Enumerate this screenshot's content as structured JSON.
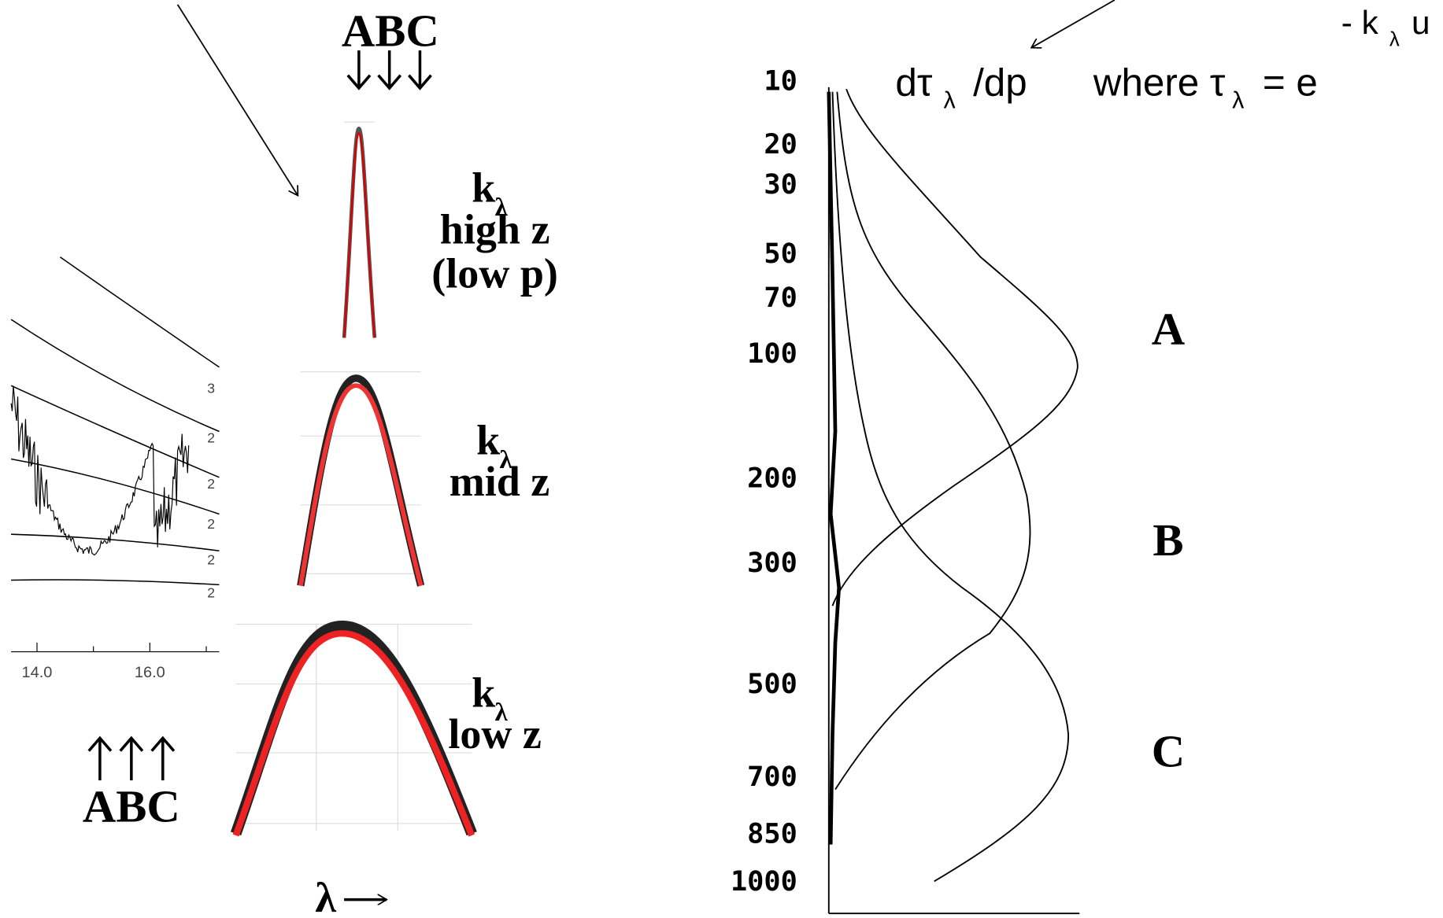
{
  "top_letters": "ABC",
  "bottom_letters": "ABC",
  "profiles": [
    {
      "k": "k",
      "sub": "λ",
      "lines": [
        "high z",
        "(low p)"
      ]
    },
    {
      "k": "k",
      "sub": "λ",
      "lines": [
        "mid z"
      ]
    },
    {
      "k": "k",
      "sub": "λ",
      "lines": [
        "low z"
      ]
    }
  ],
  "wavelength_label": "λ",
  "spectrum_ticks": [
    "14.0",
    "16.0"
  ],
  "spectrum_side_labels": [
    "3",
    "2",
    "2",
    "2",
    "2",
    "2"
  ],
  "formula": {
    "d_tau": "dτ",
    "sub1": "λ",
    "per_dp": "/dp",
    "where": "where τ",
    "sub2": "λ",
    "equals": "=  e",
    "exp_k": "- k",
    "exp_sub": "λ",
    "exp_u": "u"
  },
  "pressure_labels": [
    "10",
    "20",
    "30",
    "50",
    "70",
    "100",
    "200",
    "300",
    "500",
    "700",
    "850",
    "1000"
  ],
  "layer_letters": [
    "A",
    "B",
    "C"
  ]
}
